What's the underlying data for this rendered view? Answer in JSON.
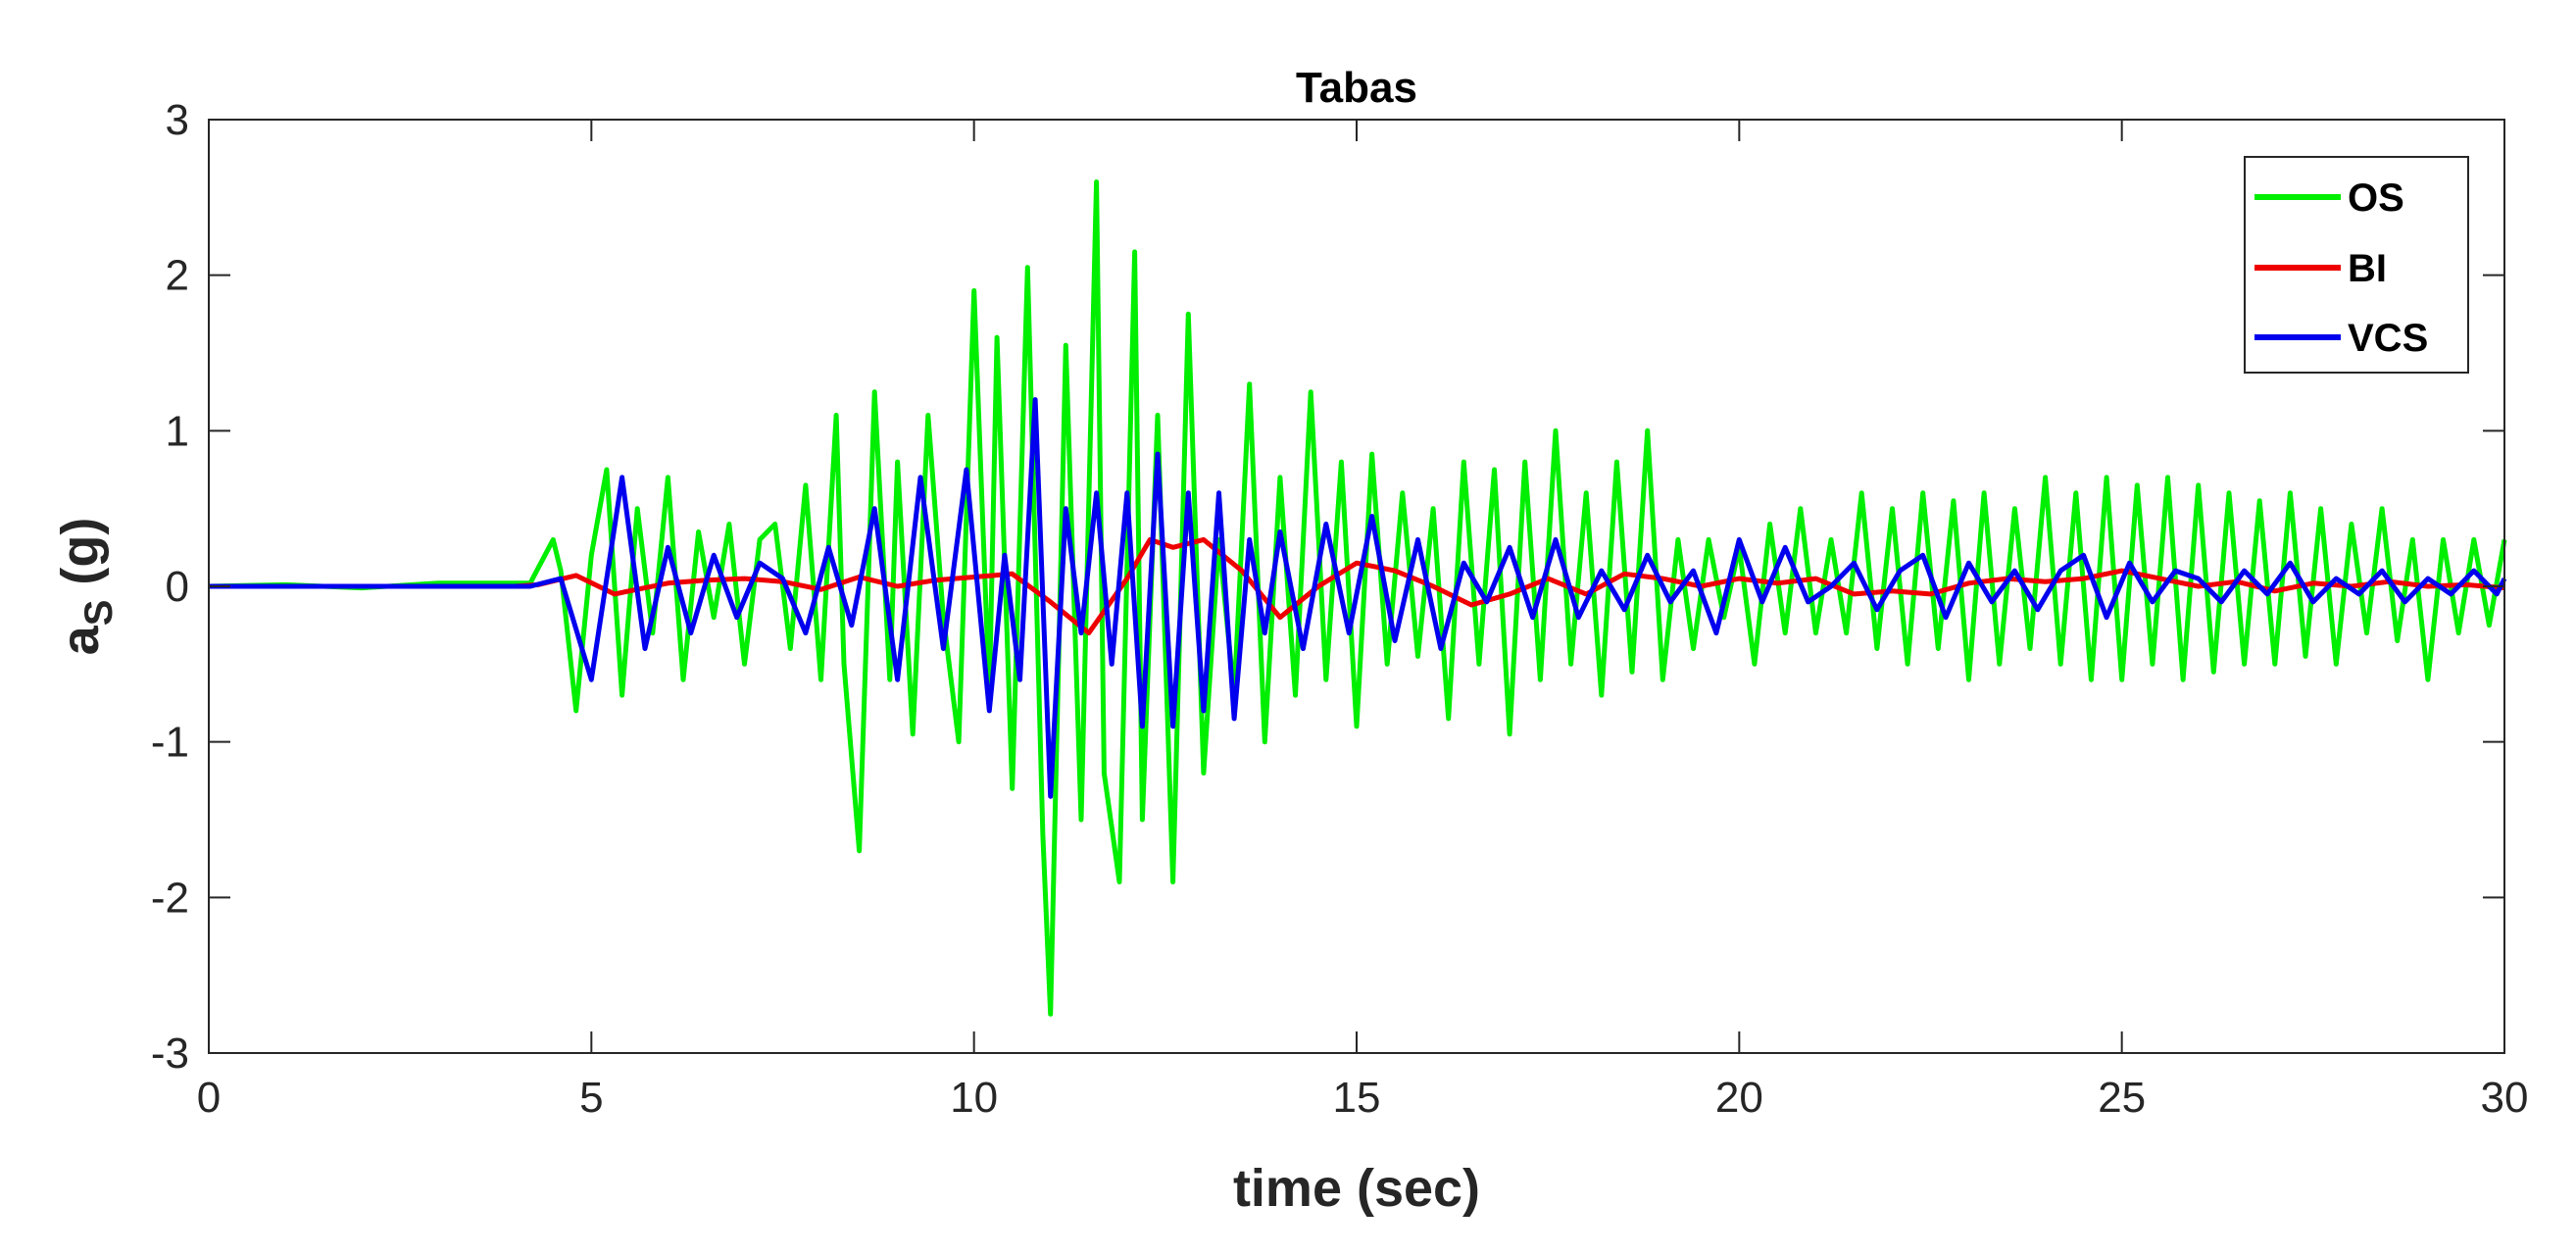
{
  "chart_data": {
    "type": "line",
    "title": "Tabas",
    "xlabel": "time (sec)",
    "ylabel_main": "a",
    "ylabel_sub": "S",
    "ylabel_unit": " (g)",
    "xlim": [
      0,
      30
    ],
    "ylim": [
      -3,
      3
    ],
    "xticks": [
      0,
      5,
      10,
      15,
      20,
      25,
      30
    ],
    "yticks": [
      -3,
      -2,
      -1,
      0,
      1,
      2,
      3
    ],
    "grid": false,
    "legend_position": "top-right",
    "series": [
      {
        "name": "OS",
        "color": "#00ee00",
        "x": [
          0,
          1,
          2,
          3,
          4.2,
          4.5,
          4.6,
          4.8,
          5.0,
          5.2,
          5.4,
          5.6,
          5.8,
          6.0,
          6.2,
          6.4,
          6.6,
          6.8,
          7.0,
          7.2,
          7.4,
          7.6,
          7.8,
          8.0,
          8.2,
          8.3,
          8.5,
          8.7,
          8.9,
          9.0,
          9.2,
          9.4,
          9.6,
          9.8,
          10.0,
          10.2,
          10.3,
          10.5,
          10.7,
          10.9,
          11.0,
          11.2,
          11.4,
          11.6,
          11.7,
          11.9,
          12.1,
          12.2,
          12.4,
          12.6,
          12.8,
          13.0,
          13.2,
          13.4,
          13.6,
          13.8,
          14.0,
          14.2,
          14.4,
          14.6,
          14.8,
          15.0,
          15.2,
          15.4,
          15.6,
          15.8,
          16.0,
          16.2,
          16.4,
          16.6,
          16.8,
          17.0,
          17.2,
          17.4,
          17.6,
          17.8,
          18.0,
          18.2,
          18.4,
          18.6,
          18.8,
          19.0,
          19.2,
          19.4,
          19.6,
          19.8,
          20.0,
          20.2,
          20.4,
          20.6,
          20.8,
          21.0,
          21.2,
          21.4,
          21.6,
          21.8,
          22.0,
          22.2,
          22.4,
          22.6,
          22.8,
          23.0,
          23.2,
          23.4,
          23.6,
          23.8,
          24.0,
          24.2,
          24.4,
          24.6,
          24.8,
          25.0,
          25.2,
          25.4,
          25.6,
          25.8,
          26.0,
          26.2,
          26.4,
          26.6,
          26.8,
          27.0,
          27.2,
          27.4,
          27.6,
          27.8,
          28.0,
          28.2,
          28.4,
          28.6,
          28.8,
          29.0,
          29.2,
          29.4,
          29.6,
          29.8,
          30.0
        ],
        "y": [
          0.0,
          0.01,
          -0.01,
          0.02,
          0.02,
          0.3,
          0.1,
          -0.8,
          0.2,
          0.75,
          -0.7,
          0.5,
          -0.3,
          0.7,
          -0.6,
          0.35,
          -0.2,
          0.4,
          -0.5,
          0.3,
          0.4,
          -0.4,
          0.65,
          -0.6,
          1.1,
          -0.5,
          -1.7,
          1.25,
          -0.6,
          0.8,
          -0.95,
          1.1,
          -0.2,
          -1.0,
          1.9,
          -0.7,
          1.6,
          -1.3,
          2.05,
          -1.6,
          -2.75,
          1.55,
          -1.5,
          2.6,
          -1.2,
          -1.9,
          2.15,
          -1.5,
          1.1,
          -1.9,
          1.75,
          -1.2,
          0.3,
          -0.7,
          1.3,
          -1.0,
          0.7,
          -0.7,
          1.25,
          -0.6,
          0.8,
          -0.9,
          0.85,
          -0.5,
          0.6,
          -0.45,
          0.5,
          -0.85,
          0.8,
          -0.5,
          0.75,
          -0.95,
          0.8,
          -0.6,
          1.0,
          -0.5,
          0.6,
          -0.7,
          0.8,
          -0.55,
          1.0,
          -0.6,
          0.3,
          -0.4,
          0.3,
          -0.2,
          0.25,
          -0.5,
          0.4,
          -0.3,
          0.5,
          -0.3,
          0.3,
          -0.3,
          0.6,
          -0.4,
          0.5,
          -0.5,
          0.6,
          -0.4,
          0.55,
          -0.6,
          0.6,
          -0.5,
          0.5,
          -0.4,
          0.7,
          -0.5,
          0.6,
          -0.6,
          0.7,
          -0.6,
          0.65,
          -0.5,
          0.7,
          -0.6,
          0.65,
          -0.55,
          0.6,
          -0.5,
          0.55,
          -0.5,
          0.6,
          -0.45,
          0.5,
          -0.5,
          0.4,
          -0.3,
          0.5,
          -0.35,
          0.3,
          -0.6,
          0.3,
          -0.3,
          0.3,
          -0.25,
          0.3
        ]
      },
      {
        "name": "BI",
        "color": "#ee0000",
        "x": [
          0,
          2,
          4,
          4.3,
          4.8,
          5.3,
          6.0,
          6.5,
          7.0,
          7.5,
          8.0,
          8.5,
          9.0,
          9.5,
          10.0,
          10.5,
          11.0,
          11.5,
          12.0,
          12.3,
          12.6,
          13.0,
          13.5,
          14.0,
          14.5,
          15.0,
          15.5,
          16.0,
          16.5,
          17.0,
          17.5,
          18.0,
          18.5,
          19.0,
          19.5,
          20.0,
          20.5,
          21.0,
          21.5,
          22.0,
          22.5,
          23.0,
          23.5,
          24.0,
          24.5,
          25.0,
          25.5,
          26.0,
          26.5,
          27.0,
          27.5,
          28.0,
          28.5,
          29.0,
          29.5,
          30.0
        ],
        "y": [
          0.0,
          0.0,
          0.0,
          0.01,
          0.07,
          -0.05,
          0.02,
          0.04,
          0.05,
          0.03,
          -0.02,
          0.06,
          0.0,
          0.04,
          0.06,
          0.08,
          -0.1,
          -0.3,
          0.05,
          0.3,
          0.25,
          0.3,
          0.1,
          -0.2,
          0.0,
          0.15,
          0.1,
          0.0,
          -0.12,
          -0.05,
          0.05,
          -0.05,
          0.08,
          0.05,
          0.0,
          0.05,
          0.02,
          0.05,
          -0.05,
          -0.03,
          -0.05,
          0.02,
          0.05,
          0.03,
          0.05,
          0.1,
          0.05,
          0.0,
          0.03,
          -0.03,
          0.02,
          0.0,
          0.03,
          0.0,
          0.01,
          -0.01
        ]
      },
      {
        "name": "VCS",
        "color": "#0000ee",
        "x": [
          0,
          2,
          4.2,
          4.6,
          5.0,
          5.4,
          5.7,
          6.0,
          6.3,
          6.6,
          6.9,
          7.2,
          7.5,
          7.8,
          8.1,
          8.4,
          8.7,
          9.0,
          9.3,
          9.6,
          9.9,
          10.2,
          10.4,
          10.6,
          10.8,
          11.0,
          11.2,
          11.4,
          11.6,
          11.8,
          12.0,
          12.2,
          12.4,
          12.6,
          12.8,
          13.0,
          13.2,
          13.4,
          13.6,
          13.8,
          14.0,
          14.3,
          14.6,
          14.9,
          15.2,
          15.5,
          15.8,
          16.1,
          16.4,
          16.7,
          17.0,
          17.3,
          17.6,
          17.9,
          18.2,
          18.5,
          18.8,
          19.1,
          19.4,
          19.7,
          20.0,
          20.3,
          20.6,
          20.9,
          21.2,
          21.5,
          21.8,
          22.1,
          22.4,
          22.7,
          23.0,
          23.3,
          23.6,
          23.9,
          24.2,
          24.5,
          24.8,
          25.1,
          25.4,
          25.7,
          26.0,
          26.3,
          26.6,
          26.9,
          27.2,
          27.5,
          27.8,
          28.1,
          28.4,
          28.7,
          29.0,
          29.3,
          29.6,
          29.9,
          30.0
        ],
        "y": [
          0.0,
          0.0,
          0.0,
          0.05,
          -0.6,
          0.7,
          -0.4,
          0.25,
          -0.3,
          0.2,
          -0.2,
          0.15,
          0.05,
          -0.3,
          0.25,
          -0.25,
          0.5,
          -0.6,
          0.7,
          -0.4,
          0.75,
          -0.8,
          0.2,
          -0.6,
          1.2,
          -1.35,
          0.5,
          -0.3,
          0.6,
          -0.5,
          0.6,
          -0.9,
          0.85,
          -0.9,
          0.6,
          -0.8,
          0.6,
          -0.85,
          0.3,
          -0.3,
          0.35,
          -0.4,
          0.4,
          -0.3,
          0.45,
          -0.35,
          0.3,
          -0.4,
          0.15,
          -0.1,
          0.25,
          -0.2,
          0.3,
          -0.2,
          0.1,
          -0.15,
          0.2,
          -0.1,
          0.1,
          -0.3,
          0.3,
          -0.1,
          0.25,
          -0.1,
          0.0,
          0.15,
          -0.15,
          0.1,
          0.2,
          -0.2,
          0.15,
          -0.1,
          0.1,
          -0.15,
          0.1,
          0.2,
          -0.2,
          0.15,
          -0.1,
          0.1,
          0.05,
          -0.1,
          0.1,
          -0.05,
          0.15,
          -0.1,
          0.05,
          -0.05,
          0.1,
          -0.1,
          0.05,
          -0.05,
          0.1,
          -0.05,
          0.05
        ]
      }
    ]
  }
}
